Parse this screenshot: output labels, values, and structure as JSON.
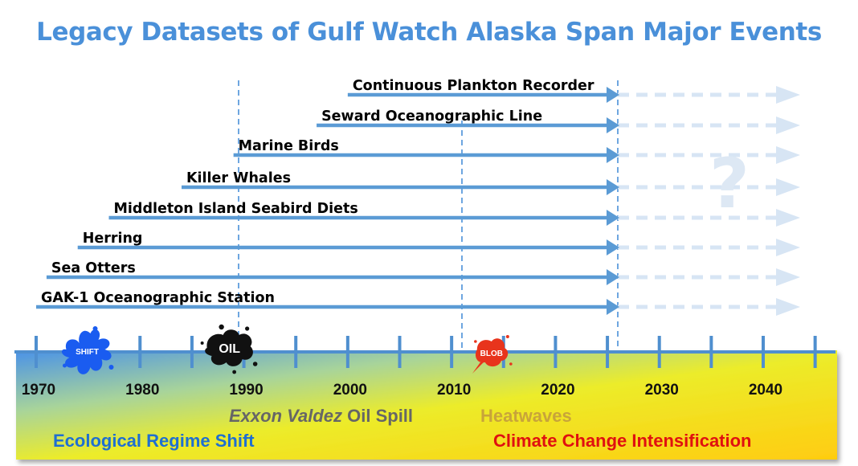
{
  "title": "Legacy Datasets of Gulf Watch Alaska Span Major Events",
  "colors": {
    "title": "#4a90d9",
    "arrow": "#5b9bd5",
    "future_arrow": "#d7e5f4",
    "axis": "#4f8fcf",
    "guide": "#4a90d9",
    "regime": "#1f6fd1",
    "oil": "#666666",
    "heat": "#c8a43a",
    "climate": "#e01010",
    "question": "#dde8f4"
  },
  "datasets": [
    {
      "label": "Continuous Plankton Recorder",
      "start_year": 2000
    },
    {
      "label": "Seward Oceanographic Line",
      "start_year": 1997
    },
    {
      "label": "Marine Birds",
      "start_year": 1989
    },
    {
      "label": "Killer Whales",
      "start_year": 1984
    },
    {
      "label": "Middleton Island Seabird Diets",
      "start_year": 1977
    },
    {
      "label": "Herring",
      "start_year": 1974
    },
    {
      "label": "Sea Otters",
      "start_year": 1971
    },
    {
      "label": "GAK-1 Oceanographic Station",
      "start_year": 1970
    }
  ],
  "timeline": {
    "years": [
      1970,
      1980,
      1990,
      2000,
      2010,
      2020,
      2030,
      2040
    ],
    "year_labels": [
      "1970",
      "1980",
      "1990",
      "2000",
      "2010",
      "2020",
      "2030",
      "2040"
    ],
    "present_year": 2026,
    "future_symbol": "?"
  },
  "events": {
    "shift": {
      "badge": "SHIFT",
      "year": 1977
    },
    "oil": {
      "badge": "OIL",
      "year": 1989
    },
    "blob": {
      "badge": "BLOB",
      "year": 2014
    }
  },
  "event_labels": {
    "oil_spill_italic": "Exxon Valdez",
    "oil_spill_rest": " Oil Spill",
    "heatwaves": "Heatwaves",
    "regime_shift": "Ecological Regime Shift",
    "climate": "Climate Change Intensification"
  }
}
